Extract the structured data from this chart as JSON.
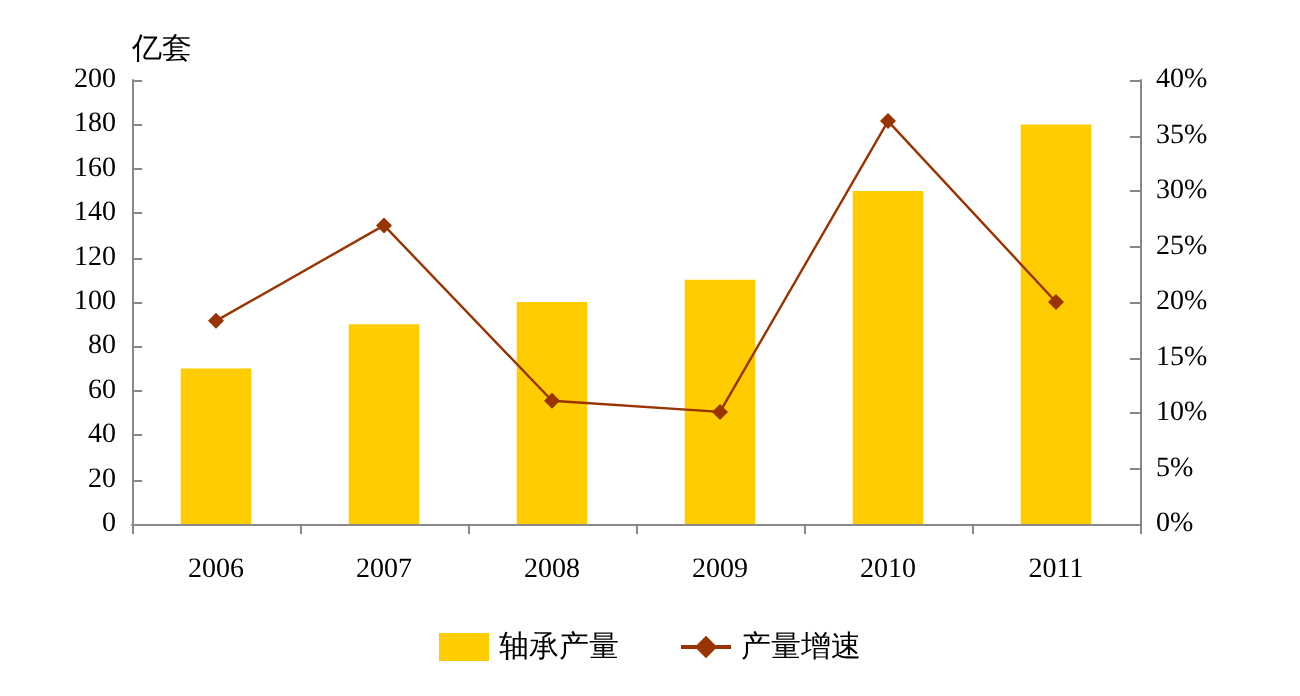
{
  "chart_data": {
    "type": "bar",
    "ylabel": "亿套",
    "categories": [
      "2006",
      "2007",
      "2008",
      "2009",
      "2010",
      "2011"
    ],
    "series": [
      {
        "name": "轴承产量",
        "color": "#ffcc00",
        "values": [
          70,
          90,
          100,
          110,
          150,
          180
        ]
      },
      {
        "name": "产量增速",
        "type": "line",
        "axis": "y2",
        "color": "#993300",
        "marker": "diamond",
        "values": [
          18.3,
          26.9,
          11.1,
          10.1,
          36.3,
          20.0
        ]
      }
    ],
    "ylim": [
      0,
      200
    ],
    "yticks": [
      0,
      20,
      40,
      60,
      80,
      100,
      120,
      140,
      160,
      180,
      200
    ],
    "y2lim": [
      0,
      40
    ],
    "y2ticks": [
      {
        "value": 0,
        "label": "0%"
      },
      {
        "value": 5,
        "label": "5%"
      },
      {
        "value": 10,
        "label": "10%"
      },
      {
        "value": 15,
        "label": "15%"
      },
      {
        "value": 20,
        "label": "20%"
      },
      {
        "value": 25,
        "label": "25%"
      },
      {
        "value": 30,
        "label": "30%"
      },
      {
        "value": 35,
        "label": "35%"
      },
      {
        "value": 40,
        "label": "40%"
      }
    ],
    "grid": false,
    "legend": "bottom"
  }
}
